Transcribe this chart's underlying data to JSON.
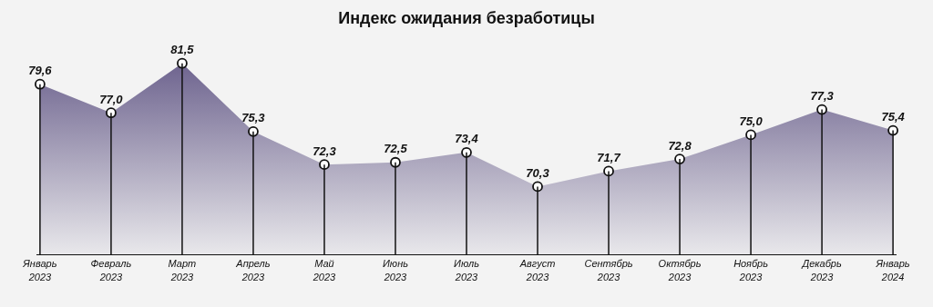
{
  "chart_data": {
    "type": "area",
    "title": "Индекс ожидания безработицы",
    "categories": [
      "Январь\n2023",
      "Февраль\n2023",
      "Март\n2023",
      "Апрель\n2023",
      "Май\n2023",
      "Июнь\n2023",
      "Июль\n2023",
      "Август\n2023",
      "Сентябрь\n2023",
      "Октябрь\n2023",
      "Ноябрь\n2023",
      "Декабрь\n2023",
      "Январь\n2024"
    ],
    "values": [
      79.6,
      77.0,
      81.5,
      75.3,
      72.3,
      72.5,
      73.4,
      70.3,
      71.7,
      72.8,
      75.0,
      77.3,
      75.4
    ],
    "value_labels": [
      "79,6",
      "77,0",
      "81,5",
      "75,3",
      "72,3",
      "72,5",
      "73,4",
      "70,3",
      "71,7",
      "72,8",
      "75,0",
      "77,3",
      "75,4"
    ],
    "color": "#6e648f",
    "marker": "circle",
    "legend": false
  }
}
